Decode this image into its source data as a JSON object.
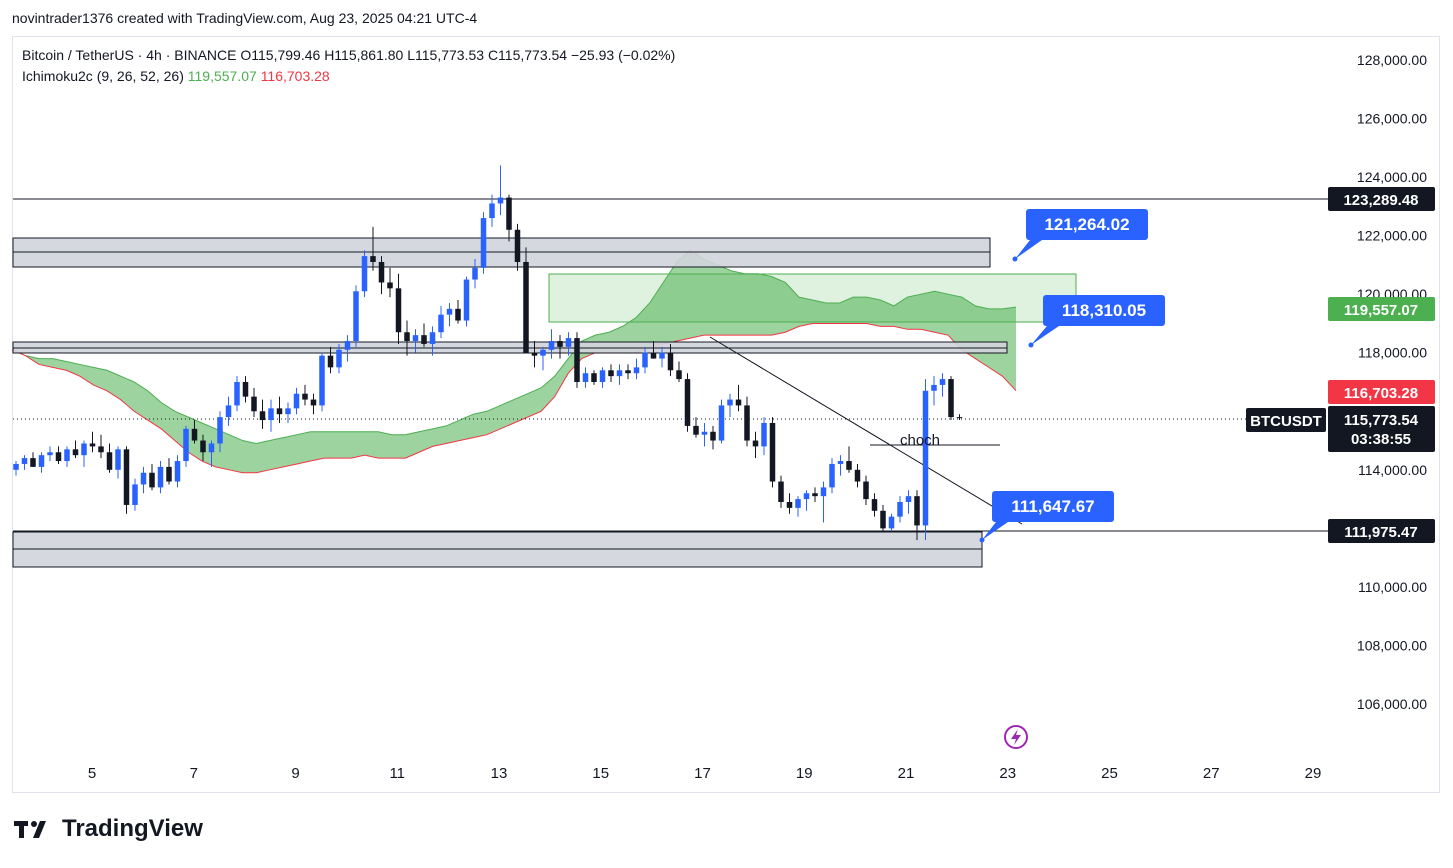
{
  "header": {
    "text": "novintrader1376 created with TradingView.com, Aug 23, 2025 04:21 UTC-4"
  },
  "legend": {
    "symbol_line": "Bitcoin / TetherUS · 4h · BINANCE",
    "open": "O115,799.46",
    "high": "H115,861.80",
    "low": "L115,773.53",
    "close": "C115,773.54",
    "change": "−25.93 (−0.02%)",
    "indicator": "Ichimoku2c (9, 26, 52, 26)",
    "ind_val_a": "119,557.07",
    "ind_val_b": "116,703.28"
  },
  "price_axis": {
    "ticks": [
      "128,000.00",
      "126,000.00",
      "124,000.00",
      "122,000.00",
      "120,000.00",
      "118,000.00",
      "114,000.00",
      "110,000.00",
      "108,000.00",
      "106,000.00"
    ]
  },
  "time_axis": {
    "ticks": [
      "5",
      "7",
      "9",
      "11",
      "13",
      "15",
      "17",
      "19",
      "21",
      "23",
      "25",
      "27",
      "29"
    ]
  },
  "price_tags": {
    "resistance": "123,289.48",
    "span_a": "119,557.07",
    "span_b": "116,703.28",
    "symbol": "BTCUSDT",
    "last": "115,773.54",
    "countdown": "03:38:55",
    "support": "111,975.47"
  },
  "callouts": {
    "c1": "121,264.02",
    "c2": "118,310.05",
    "c3": "111,647.67"
  },
  "annotations": {
    "choch": "choch"
  },
  "brand": {
    "name": "TradingView"
  },
  "colors": {
    "up": "#2962ff",
    "down": "#131722",
    "cloud": "#4caf50",
    "span_b": "#f23645",
    "callout": "#2962ff"
  },
  "chart_data": {
    "type": "candlestick",
    "symbol": "BTCUSDT",
    "timeframe": "4h",
    "ylim": [
      104800,
      129000
    ],
    "x_ticks": [
      "5",
      "7",
      "9",
      "11",
      "13",
      "15",
      "17",
      "19",
      "21",
      "23",
      "25",
      "27",
      "29"
    ],
    "horizontal_lines": [
      123289.48,
      111975.47
    ],
    "zones": [
      {
        "from": 121400,
        "to": 122400
      },
      {
        "from": 117950,
        "to": 118300
      },
      {
        "from": 110700,
        "to": 112000
      }
    ],
    "ohlc": [
      [
        114.0,
        114.3,
        113.8,
        114.2
      ],
      [
        114.2,
        114.5,
        114.0,
        114.4
      ],
      [
        114.4,
        114.6,
        114.1,
        114.1
      ],
      [
        114.1,
        114.6,
        113.9,
        114.5
      ],
      [
        114.5,
        114.8,
        114.3,
        114.6
      ],
      [
        114.6,
        114.8,
        114.2,
        114.3
      ],
      [
        114.3,
        114.8,
        114.1,
        114.7
      ],
      [
        114.7,
        115.0,
        114.4,
        114.5
      ],
      [
        114.5,
        115.0,
        114.1,
        114.9
      ],
      [
        114.9,
        115.3,
        114.6,
        114.8
      ],
      [
        114.8,
        115.2,
        114.4,
        114.6
      ],
      [
        114.6,
        114.9,
        113.9,
        114.0
      ],
      [
        114.0,
        114.8,
        113.7,
        114.7
      ],
      [
        114.7,
        114.8,
        112.5,
        112.8
      ],
      [
        112.8,
        113.7,
        112.6,
        113.5
      ],
      [
        113.5,
        114.1,
        113.2,
        113.9
      ],
      [
        113.9,
        114.2,
        113.3,
        113.4
      ],
      [
        113.4,
        114.3,
        113.2,
        114.1
      ],
      [
        114.1,
        114.4,
        113.5,
        113.6
      ],
      [
        113.6,
        114.5,
        113.4,
        114.3
      ],
      [
        114.3,
        115.5,
        114.1,
        115.4
      ],
      [
        115.4,
        115.7,
        114.9,
        115.0
      ],
      [
        115.0,
        115.2,
        114.3,
        114.6
      ],
      [
        114.6,
        115.0,
        114.1,
        114.9
      ],
      [
        114.9,
        116.0,
        114.6,
        115.8
      ],
      [
        115.8,
        116.5,
        115.5,
        116.2
      ],
      [
        116.2,
        117.2,
        116.0,
        117.0
      ],
      [
        117.0,
        117.2,
        116.3,
        116.5
      ],
      [
        116.5,
        116.8,
        115.8,
        116.0
      ],
      [
        116.0,
        116.4,
        115.4,
        115.7
      ],
      [
        115.7,
        116.4,
        115.3,
        116.1
      ],
      [
        116.1,
        116.5,
        115.6,
        115.9
      ],
      [
        115.9,
        116.3,
        115.6,
        116.1
      ],
      [
        116.1,
        116.8,
        115.9,
        116.6
      ],
      [
        116.6,
        116.9,
        116.2,
        116.4
      ],
      [
        116.4,
        116.6,
        115.9,
        116.2
      ],
      [
        116.2,
        118.0,
        116.0,
        117.9
      ],
      [
        117.9,
        118.2,
        117.3,
        117.5
      ],
      [
        117.5,
        118.3,
        117.3,
        118.1
      ],
      [
        118.1,
        118.6,
        117.7,
        118.4
      ],
      [
        118.4,
        120.3,
        118.2,
        120.1
      ],
      [
        120.1,
        121.5,
        119.9,
        121.3
      ],
      [
        121.3,
        122.3,
        120.8,
        121.1
      ],
      [
        121.1,
        121.3,
        120.0,
        120.4
      ],
      [
        120.4,
        120.9,
        119.9,
        120.2
      ],
      [
        120.2,
        120.7,
        118.3,
        118.7
      ],
      [
        118.7,
        119.1,
        117.9,
        118.4
      ],
      [
        118.4,
        118.8,
        118.0,
        118.6
      ],
      [
        118.6,
        119.0,
        118.2,
        118.3
      ],
      [
        118.3,
        118.9,
        117.9,
        118.7
      ],
      [
        118.7,
        119.6,
        118.5,
        119.3
      ],
      [
        119.3,
        119.7,
        118.9,
        119.5
      ],
      [
        119.5,
        119.8,
        119.0,
        119.1
      ],
      [
        119.1,
        120.6,
        118.9,
        120.5
      ],
      [
        120.5,
        121.2,
        120.2,
        120.9
      ],
      [
        120.9,
        122.8,
        120.7,
        122.6
      ],
      [
        122.6,
        123.4,
        122.3,
        123.1
      ],
      [
        123.1,
        124.4,
        122.7,
        123.3
      ],
      [
        123.3,
        123.4,
        121.8,
        122.2
      ],
      [
        122.2,
        122.4,
        120.8,
        121.1
      ],
      [
        121.1,
        121.6,
        118.4,
        118.0
      ],
      [
        118.0,
        118.4,
        117.5,
        117.9
      ],
      [
        117.9,
        118.2,
        117.4,
        118.1
      ],
      [
        118.1,
        118.8,
        117.8,
        118.4
      ],
      [
        118.4,
        118.6,
        117.8,
        118.2
      ],
      [
        118.2,
        118.7,
        117.9,
        118.5
      ],
      [
        118.5,
        118.7,
        116.8,
        117.0
      ],
      [
        117.0,
        117.5,
        116.8,
        117.3
      ],
      [
        117.3,
        117.4,
        116.9,
        117.0
      ],
      [
        117.0,
        117.5,
        116.8,
        117.4
      ],
      [
        117.4,
        117.6,
        117.0,
        117.2
      ],
      [
        117.2,
        117.6,
        116.9,
        117.4
      ],
      [
        117.4,
        117.6,
        117.1,
        117.3
      ],
      [
        117.3,
        117.8,
        117.1,
        117.5
      ],
      [
        117.5,
        118.2,
        117.3,
        118.0
      ],
      [
        118.0,
        118.4,
        117.8,
        117.8
      ],
      [
        117.8,
        118.2,
        117.5,
        118.0
      ],
      [
        118.0,
        118.3,
        117.2,
        117.4
      ],
      [
        117.4,
        117.7,
        117.0,
        117.1
      ],
      [
        117.1,
        117.3,
        115.3,
        115.5
      ],
      [
        115.5,
        115.8,
        115.1,
        115.2
      ],
      [
        115.2,
        115.6,
        114.8,
        115.3
      ],
      [
        115.3,
        115.5,
        114.7,
        115.0
      ],
      [
        115.0,
        116.4,
        114.9,
        116.2
      ],
      [
        116.2,
        116.6,
        115.8,
        116.4
      ],
      [
        116.4,
        116.9,
        116.0,
        116.2
      ],
      [
        116.2,
        116.5,
        114.8,
        115.0
      ],
      [
        115.0,
        115.3,
        114.4,
        114.8
      ],
      [
        114.8,
        115.8,
        114.5,
        115.6
      ],
      [
        115.6,
        115.8,
        113.4,
        113.6
      ],
      [
        113.6,
        113.8,
        112.7,
        112.9
      ],
      [
        112.9,
        113.2,
        112.5,
        112.7
      ],
      [
        112.7,
        113.1,
        112.4,
        113.0
      ],
      [
        113.0,
        113.3,
        112.6,
        113.2
      ],
      [
        113.2,
        113.4,
        112.9,
        113.1
      ],
      [
        113.1,
        113.6,
        112.2,
        113.4
      ],
      [
        113.4,
        114.4,
        113.2,
        114.2
      ],
      [
        114.2,
        114.5,
        113.8,
        114.3
      ],
      [
        114.3,
        114.8,
        113.9,
        114.0
      ],
      [
        114.0,
        114.2,
        113.4,
        113.6
      ],
      [
        113.6,
        113.8,
        112.8,
        113.0
      ],
      [
        113.0,
        113.2,
        112.4,
        112.6
      ],
      [
        112.6,
        112.8,
        111.9,
        112.0
      ],
      [
        112.0,
        112.5,
        111.9,
        112.4
      ],
      [
        112.4,
        113.1,
        112.2,
        112.9
      ],
      [
        112.9,
        113.3,
        112.5,
        113.1
      ],
      [
        113.1,
        113.3,
        111.6,
        112.1
      ],
      [
        112.1,
        117.1,
        111.6,
        116.7
      ],
      [
        116.7,
        117.2,
        116.2,
        116.9
      ],
      [
        116.9,
        117.3,
        116.5,
        117.1
      ],
      [
        117.1,
        117.2,
        115.7,
        115.8
      ],
      [
        115.8,
        115.9,
        115.7,
        115.77
      ]
    ],
    "cloud": {
      "span_a": [
        118.1,
        117.9,
        117.8,
        117.8,
        117.7,
        117.6,
        117.5,
        117.4,
        117.2,
        117.0,
        116.7,
        116.3,
        116.0,
        115.8,
        115.6,
        115.4,
        115.2,
        115.0,
        114.9,
        115.0,
        115.1,
        115.2,
        115.3,
        115.3,
        115.3,
        115.3,
        115.3,
        115.3,
        115.2,
        115.2,
        115.3,
        115.4,
        115.5,
        115.7,
        115.9,
        116.0,
        116.2,
        116.4,
        116.6,
        116.8,
        117.2,
        117.8,
        118.4,
        118.6,
        118.7,
        118.9,
        119.2,
        119.7,
        120.4,
        121.1,
        121.5,
        121.2,
        121.0,
        120.8,
        120.7,
        120.7,
        120.6,
        120.4,
        119.9,
        119.8,
        119.7,
        119.7,
        119.9,
        119.9,
        119.8,
        119.6,
        119.9,
        120.0,
        120.1,
        120.0,
        119.9,
        119.6,
        119.5,
        119.5,
        119.557
      ],
      "span_b": [
        118.1,
        117.9,
        117.6,
        117.5,
        117.4,
        117.2,
        116.9,
        116.7,
        116.4,
        116.0,
        115.7,
        115.4,
        115.0,
        114.6,
        114.3,
        114.1,
        114.0,
        113.9,
        113.9,
        114.0,
        114.1,
        114.2,
        114.3,
        114.4,
        114.4,
        114.4,
        114.5,
        114.4,
        114.4,
        114.4,
        114.6,
        114.8,
        114.9,
        115.0,
        115.1,
        115.2,
        115.4,
        115.6,
        115.8,
        116.0,
        116.5,
        117.3,
        117.8,
        118.0,
        118.0,
        118.0,
        118.0,
        118.2,
        118.3,
        118.4,
        118.5,
        118.6,
        118.6,
        118.6,
        118.6,
        118.6,
        118.6,
        118.7,
        118.9,
        119.0,
        119.0,
        119.0,
        119.0,
        119.0,
        118.9,
        118.9,
        118.8,
        118.8,
        118.7,
        118.6,
        118.1,
        117.8,
        117.5,
        117.2,
        116.703
      ]
    },
    "annotations": [
      "choch"
    ],
    "callouts": [
      121264.02,
      118310.05,
      111647.67
    ]
  }
}
